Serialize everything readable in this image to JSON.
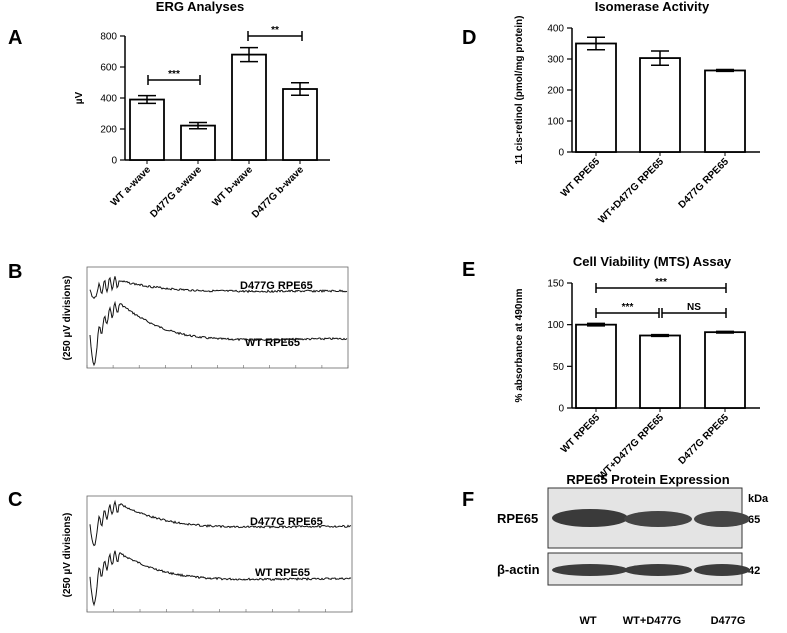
{
  "chart_data": [
    {
      "type": "bar",
      "letter": "A",
      "title": "ERG Analyses",
      "ylabel": "µV",
      "categories": [
        "WT a-wave",
        "D477G a-wave",
        "WT b-wave",
        "D477G b-wave"
      ],
      "values": [
        390,
        222,
        680,
        458
      ],
      "errors": [
        25,
        20,
        45,
        40
      ],
      "color": "#ffffff",
      "ylim": [
        0,
        800
      ],
      "yticks": [
        0,
        200,
        400,
        600,
        800
      ],
      "annotations": [
        "***",
        "**"
      ]
    },
    {
      "type": "bar",
      "letter": "D",
      "title": "Isomerase Activity",
      "ylabel": "11 cis-retinol (pmol/mg protein)",
      "categories": [
        "WT RPE65",
        "WT+D477G RPE65",
        "D477G RPE65"
      ],
      "values": [
        350,
        303,
        263
      ],
      "errors": [
        20,
        23,
        3
      ],
      "color": "#ffffff",
      "ylim": [
        0,
        400
      ],
      "yticks": [
        0,
        100,
        200,
        300,
        400
      ],
      "annotations": []
    },
    {
      "type": "bar",
      "letter": "E",
      "title": "Cell Viability (MTS) Assay",
      "ylabel": "% absorbance at 490nm",
      "categories": [
        "WT RPE65",
        "WT+D477G RPE65",
        "D477G RPE65"
      ],
      "values": [
        100,
        87,
        91
      ],
      "errors": [
        1.5,
        1,
        1
      ],
      "color": "#ffffff",
      "ylim": [
        0,
        150
      ],
      "yticks": [
        0,
        50,
        100,
        150
      ],
      "annotations": [
        "***",
        "***",
        "NS"
      ]
    }
  ],
  "panels": {
    "B": {
      "letter": "B",
      "ylabel": "(250 µV  divisions)",
      "labels": [
        "D477G RPE65",
        "WT RPE65"
      ]
    },
    "C": {
      "letter": "C",
      "ylabel": "(250 µV  divisions)",
      "labels": [
        "D477G RPE65",
        "WT RPE65"
      ]
    },
    "F": {
      "letter": "F",
      "title": "RPE65 Protein Expression",
      "unit": "kDa",
      "rows": [
        {
          "label": "RPE65",
          "kda": "65"
        },
        {
          "label": "β-actin",
          "kda": "42"
        }
      ],
      "lanes": [
        "WT",
        "WT+D477G",
        "D477G"
      ]
    }
  }
}
